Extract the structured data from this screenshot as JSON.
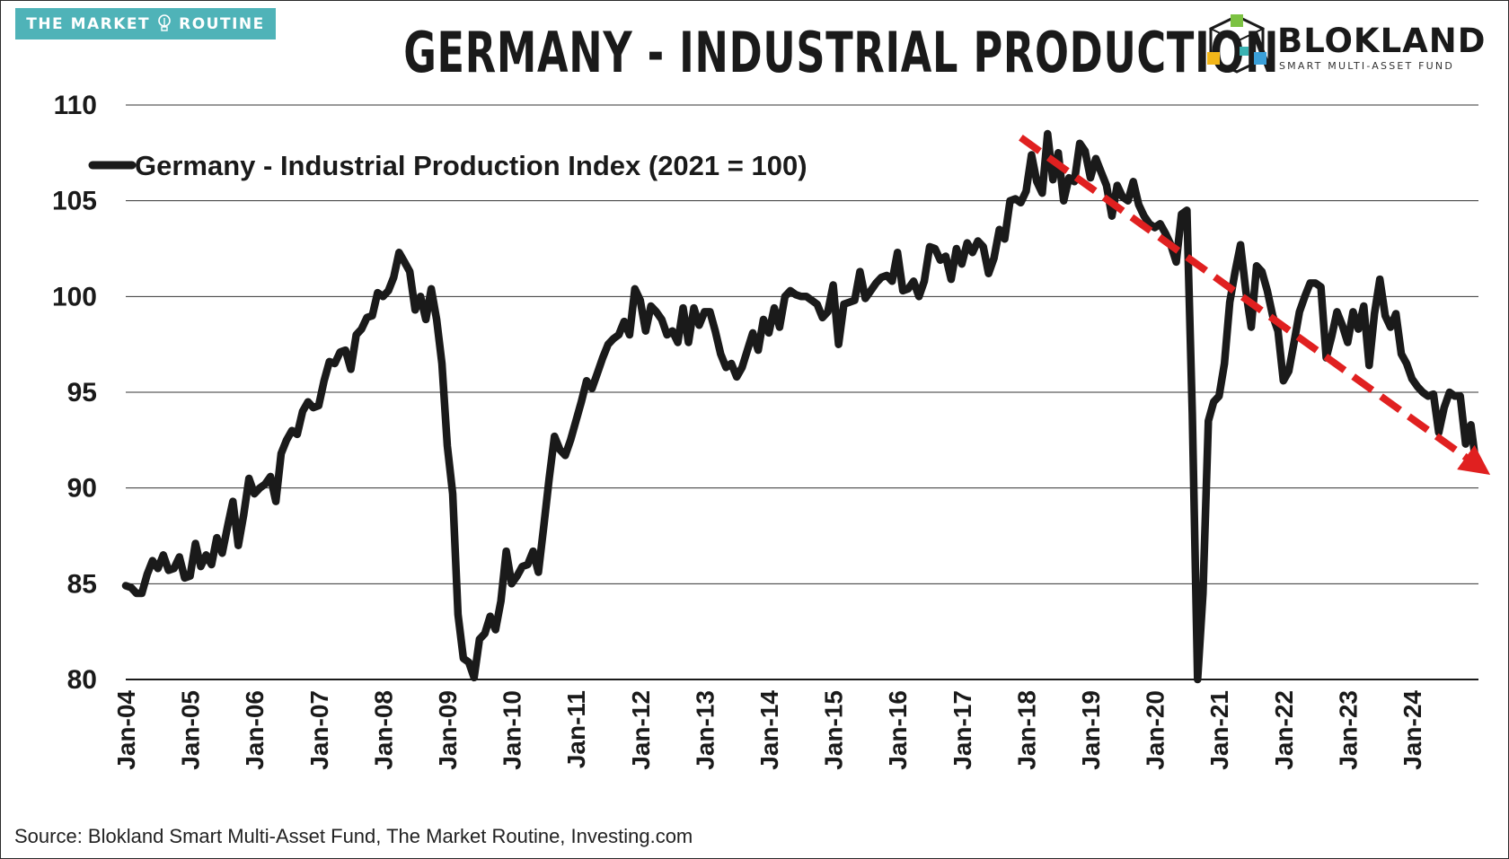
{
  "header": {
    "brand_left": "THE MARKET ROUTINE",
    "brand_left_a": "THE MARKET",
    "brand_left_b": "ROUTINE",
    "title": "GERMANY - INDUSTRIAL PRODUCTION",
    "brand_right_name": "BLOKLAND",
    "brand_right_sub": "SMART MULTI-ASSET FUND"
  },
  "footer": {
    "source": "Source: Blokland Smart Multi-Asset Fund, The Market Routine, Investing.com"
  },
  "colors": {
    "brand_teal": "#4fb3b8",
    "series_line": "#1a1a1a",
    "trend_arrow": "#e02020",
    "gridline": "#333333",
    "logo_green": "#7cc242",
    "logo_blue": "#3a9fd8",
    "logo_yellow": "#f2b619",
    "logo_teal": "#3bb3b3"
  },
  "chart_data": {
    "type": "line",
    "title": "GERMANY - INDUSTRIAL PRODUCTION",
    "x_start": "2004-01",
    "x_step": "month",
    "ylim": [
      80,
      110
    ],
    "y_ticks": [
      80,
      85,
      90,
      95,
      100,
      105,
      110
    ],
    "x_tick_labels": [
      "Jan-04",
      "Jan-05",
      "Jan-06",
      "Jan-07",
      "Jan-08",
      "Jan-09",
      "Jan-10",
      "Jan-11",
      "Jan-12",
      "Jan-13",
      "Jan-14",
      "Jan-15",
      "Jan-16",
      "Jan-17",
      "Jan-18",
      "Jan-19",
      "Jan-20",
      "Jan-21",
      "Jan-22",
      "Jan-23",
      "Jan-24"
    ],
    "grid": "horizontal",
    "legend_position": "top-left",
    "series": [
      {
        "name": "Germany - Industrial Production Index (2021 = 100)",
        "values": [
          84.9,
          84.8,
          84.5,
          84.5,
          85.5,
          86.2,
          85.8,
          86.5,
          85.7,
          85.8,
          86.4,
          85.3,
          85.4,
          87.1,
          85.9,
          86.5,
          86.0,
          87.4,
          86.6,
          88.0,
          89.3,
          87.0,
          88.6,
          90.5,
          89.7,
          90.0,
          90.2,
          90.6,
          89.3,
          91.8,
          92.5,
          93.0,
          92.8,
          94.0,
          94.5,
          94.2,
          94.3,
          95.6,
          96.6,
          96.5,
          97.1,
          97.2,
          96.2,
          98.0,
          98.3,
          98.9,
          99.0,
          100.2,
          100.0,
          100.3,
          101.0,
          102.3,
          101.8,
          101.3,
          99.3,
          100.0,
          98.8,
          100.4,
          98.8,
          96.5,
          92.2,
          89.7,
          83.4,
          81.1,
          80.9,
          80.1,
          82.1,
          82.4,
          83.3,
          82.6,
          84.1,
          86.7,
          85.0,
          85.4,
          85.9,
          86.0,
          86.7,
          85.6,
          88.0,
          90.5,
          92.7,
          92.0,
          91.7,
          92.5,
          93.5,
          94.5,
          95.6,
          95.2,
          96.0,
          96.8,
          97.5,
          97.8,
          98.0,
          98.7,
          98.0,
          100.4,
          99.8,
          98.2,
          99.5,
          99.2,
          98.8,
          98.0,
          98.2,
          97.6,
          99.4,
          97.6,
          99.4,
          98.5,
          99.2,
          99.2,
          98.2,
          97.0,
          96.3,
          96.5,
          95.8,
          96.3,
          97.2,
          98.1,
          97.2,
          98.8,
          98.1,
          99.4,
          98.4,
          100.0,
          100.3,
          100.1,
          100.0,
          100.0,
          99.8,
          99.6,
          98.9,
          99.2,
          100.6,
          97.5,
          99.6,
          99.7,
          99.8,
          101.3,
          99.9,
          100.3,
          100.7,
          101.0,
          101.1,
          100.8,
          102.3,
          100.3,
          100.4,
          100.8,
          100.0,
          100.8,
          102.6,
          102.5,
          101.9,
          102.1,
          100.9,
          102.5,
          101.7,
          102.8,
          102.3,
          102.9,
          102.6,
          101.2,
          102.0,
          103.5,
          103.0,
          105.0,
          105.1,
          104.9,
          105.5,
          107.4,
          106.0,
          105.4,
          108.5,
          106.1,
          107.5,
          105.0,
          106.2,
          106.0,
          108.0,
          107.6,
          106.2,
          107.2,
          106.5,
          105.8,
          104.2,
          105.8,
          105.2,
          105.0,
          106.0,
          104.8,
          104.2,
          103.8,
          103.6,
          103.8,
          103.3,
          102.7,
          101.8,
          104.3,
          104.5,
          93.9,
          80.0,
          84.5,
          93.5,
          94.5,
          94.8,
          96.5,
          99.7,
          101.3,
          102.7,
          100.3,
          98.4,
          101.6,
          101.3,
          100.3,
          99.0,
          98.2,
          95.6,
          96.1,
          97.6,
          99.2,
          100.0,
          100.7,
          100.7,
          100.5,
          96.8,
          97.9,
          99.2,
          98.5,
          97.6,
          99.2,
          98.3,
          99.5,
          96.4,
          99.1,
          100.9,
          99.0,
          98.4,
          99.1,
          97.0,
          96.5,
          95.7,
          95.3,
          95.0,
          94.8,
          94.9,
          92.9,
          94.2,
          95.0,
          94.8,
          94.8,
          92.3,
          93.3,
          91.1
        ]
      }
    ],
    "trend_arrow": {
      "from": {
        "x": "2017-12",
        "y": 108.3
      },
      "to": {
        "x": "2024-11",
        "y": 90.4
      },
      "style": "dashed",
      "color": "#e02020"
    }
  }
}
